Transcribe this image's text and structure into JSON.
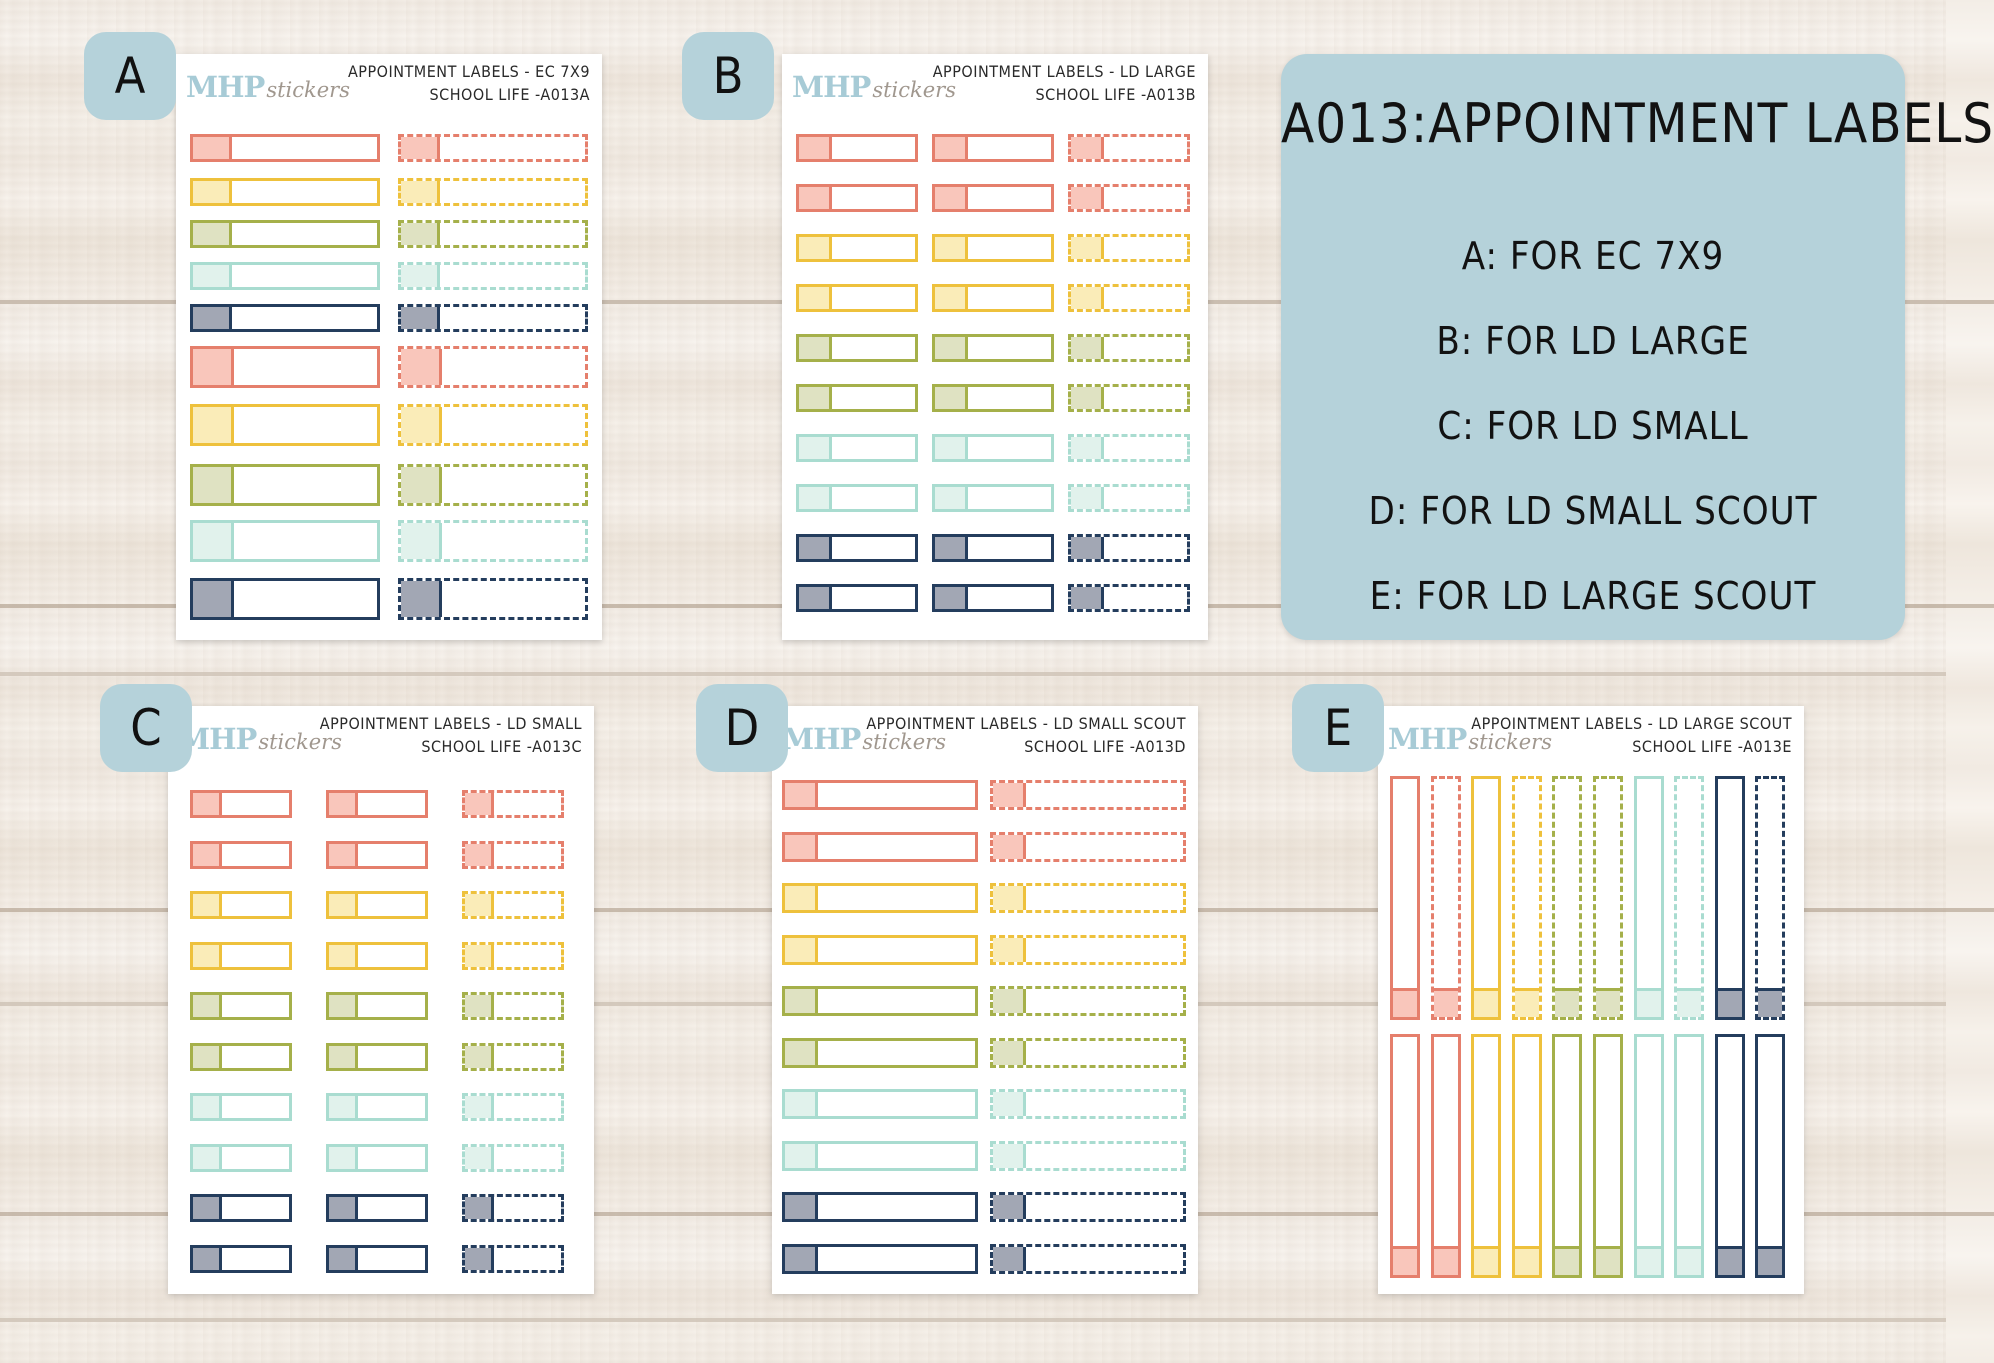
{
  "brand": {
    "logo_main": "MHP",
    "logo_sub": "stickers"
  },
  "info_panel": {
    "title": "A013:APPOINTMENT LABELS",
    "lines": [
      "A: FOR EC 7X9",
      "B: FOR LD LARGE",
      "C: FOR LD SMALL",
      "D: FOR LD SMALL SCOUT",
      "E: FOR LD LARGE SCOUT"
    ],
    "background": "#b5d2da"
  },
  "colors": {
    "coral": {
      "border": "#e57f6c",
      "fill": "#f9c6bb"
    },
    "yellow": {
      "border": "#eec13c",
      "fill": "#faecb8"
    },
    "green": {
      "border": "#a5b04a",
      "fill": "#dfe2c2"
    },
    "mint": {
      "border": "#a9dcd0",
      "fill": "#e1f2ec"
    },
    "navy": {
      "border": "#243d5d",
      "fill": "#a2a7b4"
    }
  },
  "sheets": [
    {
      "id": "A",
      "badge": "A",
      "header_line1": "APPOINTMENT LABELS - EC 7X9",
      "header_line2": "SCHOOL LIFE -A013A"
    },
    {
      "id": "B",
      "badge": "B",
      "header_line1": "APPOINTMENT LABELS - LD LARGE",
      "header_line2": "SCHOOL LIFE -A013B"
    },
    {
      "id": "C",
      "badge": "C",
      "header_line1": "APPOINTMENT LABELS - LD SMALL",
      "header_line2": "SCHOOL LIFE -A013C"
    },
    {
      "id": "D",
      "badge": "D",
      "header_line1": "APPOINTMENT LABELS - LD SMALL SCOUT",
      "header_line2": "SCHOOL LIFE -A013D"
    },
    {
      "id": "E",
      "badge": "E",
      "header_line1": "APPOINTMENT LABELS - LD LARGE SCOUT",
      "header_line2": "SCHOOL LIFE -A013E"
    }
  ]
}
